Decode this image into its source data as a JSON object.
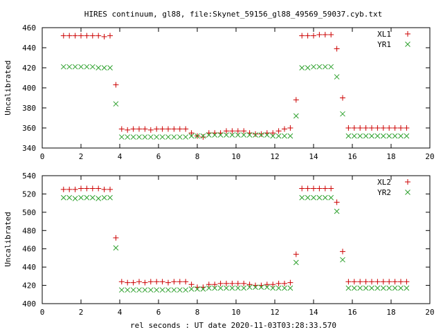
{
  "title": "HIRES continuum, gl88, file:Skynet_59156_gl88_49569_59037.cyb.txt",
  "xlabel": "rel seconds : UT date 2020-11-03T03:28:33.570",
  "colors": {
    "series_a": "#cc0000",
    "series_b": "#2ca02c"
  },
  "chart_data": [
    {
      "type": "scatter",
      "ylabel": "Uncalibrated",
      "xlim": [
        0,
        20
      ],
      "ylim": [
        340,
        460
      ],
      "xticks": [
        0,
        2,
        4,
        6,
        8,
        10,
        12,
        14,
        16,
        18,
        20
      ],
      "yticks": [
        340,
        360,
        380,
        400,
        420,
        440,
        460
      ],
      "legend_position": "top-right",
      "x": [
        1.1,
        1.4,
        1.7,
        2.0,
        2.3,
        2.6,
        2.9,
        3.2,
        3.5,
        3.8,
        4.1,
        4.4,
        4.7,
        5.0,
        5.3,
        5.6,
        5.9,
        6.2,
        6.5,
        6.8,
        7.1,
        7.4,
        7.7,
        8.0,
        8.3,
        8.6,
        8.9,
        9.2,
        9.5,
        9.8,
        10.1,
        10.4,
        10.7,
        11.0,
        11.3,
        11.6,
        11.9,
        12.2,
        12.5,
        12.8,
        13.1,
        13.4,
        13.7,
        14.0,
        14.3,
        14.6,
        14.9,
        15.2,
        15.5,
        15.8,
        16.1,
        16.4,
        16.7,
        17.0,
        17.3,
        17.6,
        17.9,
        18.2,
        18.5,
        18.8
      ],
      "series": [
        {
          "name": "XL1",
          "marker": "plus",
          "values": [
            452,
            452,
            452,
            452,
            452,
            452,
            452,
            451,
            452,
            403,
            359,
            358,
            359,
            359,
            359,
            358,
            359,
            359,
            359,
            359,
            359,
            359,
            355,
            352,
            351,
            355,
            355,
            355,
            357,
            357,
            357,
            357,
            355,
            354,
            354,
            355,
            355,
            357,
            359,
            360,
            388,
            452,
            452,
            452,
            453,
            453,
            453,
            439,
            390,
            360,
            360,
            360,
            360,
            360,
            360,
            360,
            360,
            360,
            360,
            360
          ]
        },
        {
          "name": "YR1",
          "marker": "x",
          "values": [
            421,
            421,
            421,
            421,
            421,
            421,
            420,
            420,
            420,
            384,
            351,
            351,
            351,
            351,
            351,
            351,
            351,
            351,
            351,
            351,
            351,
            351,
            352,
            352,
            352,
            353,
            353,
            353,
            353,
            353,
            353,
            353,
            353,
            353,
            353,
            353,
            352,
            352,
            352,
            352,
            372,
            420,
            420,
            421,
            421,
            421,
            421,
            411,
            374,
            352,
            352,
            352,
            352,
            352,
            352,
            352,
            352,
            352,
            352,
            352
          ]
        }
      ]
    },
    {
      "type": "scatter",
      "ylabel": "Uncalibrated",
      "xlim": [
        0,
        20
      ],
      "ylim": [
        400,
        540
      ],
      "xticks": [
        0,
        2,
        4,
        6,
        8,
        10,
        12,
        14,
        16,
        18,
        20
      ],
      "yticks": [
        400,
        420,
        440,
        460,
        480,
        500,
        520,
        540
      ],
      "legend_position": "top-right",
      "x": [
        1.1,
        1.4,
        1.7,
        2.0,
        2.3,
        2.6,
        2.9,
        3.2,
        3.5,
        3.8,
        4.1,
        4.4,
        4.7,
        5.0,
        5.3,
        5.6,
        5.9,
        6.2,
        6.5,
        6.8,
        7.1,
        7.4,
        7.7,
        8.0,
        8.3,
        8.6,
        8.9,
        9.2,
        9.5,
        9.8,
        10.1,
        10.4,
        10.7,
        11.0,
        11.3,
        11.6,
        11.9,
        12.2,
        12.5,
        12.8,
        13.1,
        13.4,
        13.7,
        14.0,
        14.3,
        14.6,
        14.9,
        15.2,
        15.5,
        15.8,
        16.1,
        16.4,
        16.7,
        17.0,
        17.3,
        17.6,
        17.9,
        18.2,
        18.5,
        18.8
      ],
      "series": [
        {
          "name": "XL2",
          "marker": "plus",
          "values": [
            525,
            525,
            525,
            526,
            526,
            526,
            526,
            525,
            525,
            472,
            424,
            423,
            423,
            424,
            423,
            424,
            424,
            424,
            423,
            424,
            424,
            424,
            421,
            418,
            418,
            421,
            421,
            422,
            422,
            422,
            422,
            422,
            421,
            420,
            420,
            421,
            421,
            422,
            422,
            423,
            454,
            526,
            526,
            526,
            526,
            526,
            526,
            511,
            457,
            424,
            424,
            424,
            424,
            424,
            424,
            424,
            424,
            424,
            424,
            424
          ]
        },
        {
          "name": "YR2",
          "marker": "x",
          "values": [
            516,
            516,
            515,
            516,
            516,
            516,
            515,
            516,
            516,
            461,
            415,
            415,
            415,
            415,
            415,
            415,
            415,
            415,
            415,
            415,
            415,
            415,
            416,
            416,
            416,
            417,
            417,
            417,
            417,
            417,
            417,
            417,
            418,
            418,
            418,
            418,
            417,
            417,
            417,
            417,
            445,
            516,
            516,
            516,
            516,
            516,
            516,
            501,
            448,
            417,
            417,
            417,
            417,
            417,
            417,
            417,
            417,
            417,
            417,
            417
          ]
        }
      ]
    }
  ]
}
